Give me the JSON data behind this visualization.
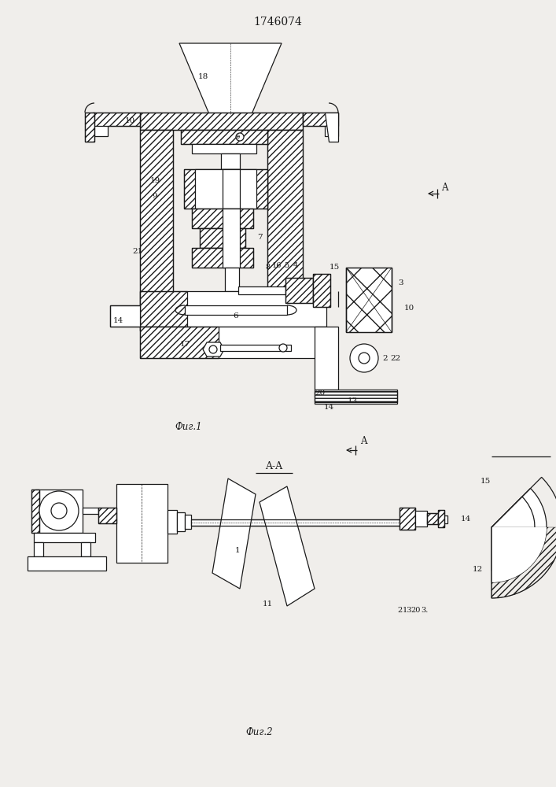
{
  "title": "1746074",
  "fig1_label": "Фиг.1",
  "fig2_label": "Фиг.2",
  "section_label": "A-A",
  "bg_color": "#f0eeeb",
  "line_color": "#1a1a1a",
  "lw": 0.9
}
